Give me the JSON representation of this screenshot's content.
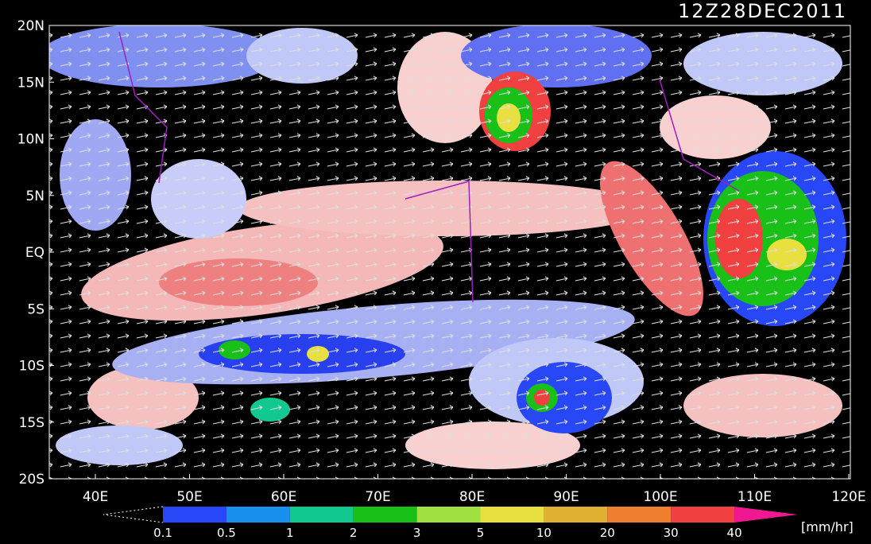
{
  "title": "12Z28DEC2011",
  "lat_labels": [
    "20N",
    "15N",
    "10N",
    "5N",
    "EQ",
    "5S",
    "10S",
    "15S",
    "20S"
  ],
  "lon_labels": [
    "40E",
    "50E",
    "60E",
    "70E",
    "80E",
    "90E",
    "100E",
    "110E",
    "120E"
  ],
  "colorbar": {
    "labels": [
      "0.1",
      "0.5",
      "1",
      "2",
      "3",
      "5",
      "10",
      "20",
      "30",
      "40"
    ],
    "colors": [
      "#2848f8",
      "#1890f0",
      "#10c890",
      "#18c018",
      "#a0e040",
      "#e8e040",
      "#e0b030",
      "#f08030",
      "#f04040",
      "#f01890"
    ],
    "unit": "[mm/hr]"
  }
}
